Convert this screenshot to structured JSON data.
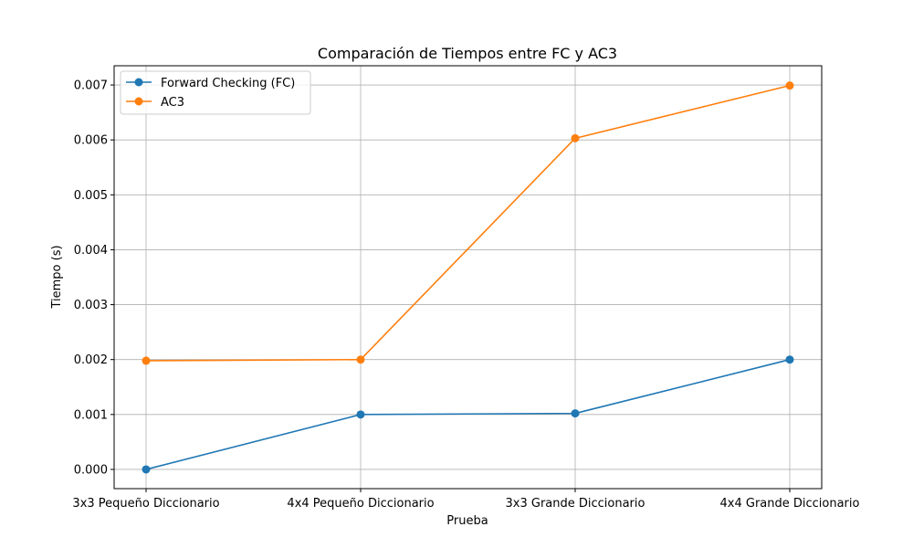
{
  "chart_data": {
    "type": "line",
    "title": "Comparación de Tiempos entre FC y AC3",
    "xlabel": "Prueba",
    "ylabel": "Tiempo (s)",
    "categories": [
      "3x3 Pequeño Diccionario",
      "4x4 Pequeño Diccionario",
      "3x3 Grande Diccionario",
      "4x4 Grande Diccionario"
    ],
    "ylim": [
      -0.00035,
      0.00735
    ],
    "yticks": [
      0.0,
      0.001,
      0.002,
      0.003,
      0.004,
      0.005,
      0.006,
      0.007
    ],
    "ytick_labels": [
      "0.000",
      "0.001",
      "0.002",
      "0.003",
      "0.004",
      "0.005",
      "0.006",
      "0.007"
    ],
    "grid": true,
    "legend_position": "top-left",
    "series": [
      {
        "name": "Forward Checking (FC)",
        "color": "#1f77b4",
        "marker": "circle",
        "values": [
          0.0,
          0.001,
          0.00102,
          0.002
        ]
      },
      {
        "name": "AC3",
        "color": "#ff7f0e",
        "marker": "circle",
        "values": [
          0.00198,
          0.002,
          0.00603,
          0.00699
        ]
      }
    ]
  }
}
